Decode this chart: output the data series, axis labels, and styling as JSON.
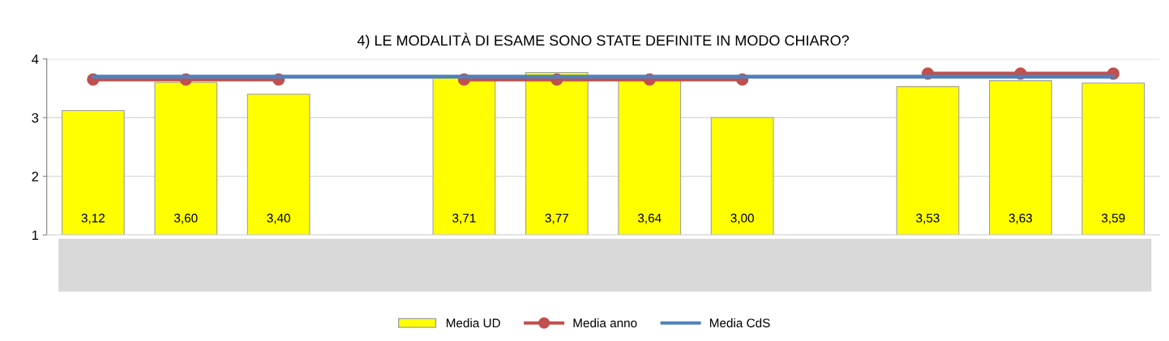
{
  "chart_data": {
    "type": "bar",
    "title": "4) LE MODALITÀ DI ESAME SONO STATE DEFINITE IN MODO CHIARO?",
    "categories": [
      null,
      null,
      null,
      null,
      null,
      null,
      null,
      null,
      null,
      null,
      null,
      null
    ],
    "ylim": [
      1,
      4
    ],
    "yticks": [
      1,
      2,
      3,
      4
    ],
    "grid": "y",
    "legend": "bottom",
    "series": [
      {
        "name": "Media UD",
        "color": "#ffff00",
        "values": [
          3.12,
          3.6,
          3.4,
          null,
          3.71,
          3.77,
          3.64,
          3.0,
          null,
          3.53,
          3.63,
          3.59
        ],
        "value_labels": [
          "3,12",
          "3,60",
          "3,40",
          null,
          "3,71",
          "3,77",
          "3,64",
          "3,00",
          null,
          "3,53",
          "3,63",
          "3,59"
        ]
      },
      {
        "name": "Media anno",
        "type": "line",
        "color": "#c0504d",
        "marker": "circle",
        "values": [
          3.65,
          3.65,
          3.65,
          null,
          3.65,
          3.65,
          3.65,
          3.65,
          null,
          3.75,
          3.75,
          3.75
        ]
      },
      {
        "name": "Media CdS",
        "type": "line",
        "color": "#4f81bd",
        "marker": "none",
        "values": [
          3.7,
          3.7,
          3.7,
          3.7,
          3.7,
          3.7,
          3.7,
          3.7,
          3.7,
          3.7,
          3.7,
          3.7
        ]
      }
    ]
  }
}
